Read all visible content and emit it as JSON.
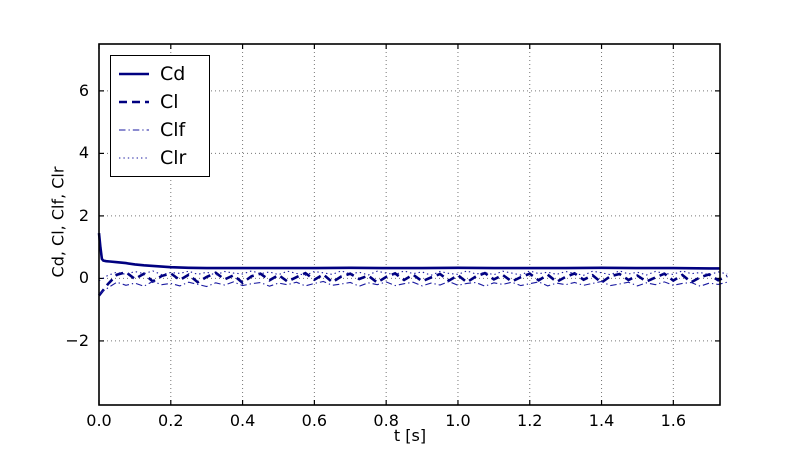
{
  "chart_data": {
    "type": "line",
    "title": "",
    "xlabel": "t [s]",
    "ylabel": "Cd, Cl, Clf, Clr",
    "xlim": [
      0,
      1.73
    ],
    "ylim": [
      -4.05,
      7.5
    ],
    "xticks": [
      0.0,
      0.2,
      0.4,
      0.6,
      0.8,
      1.0,
      1.2,
      1.4,
      1.6
    ],
    "xtick_labels": [
      "0.0",
      "0.2",
      "0.4",
      "0.6",
      "0.8",
      "1.0",
      "1.2",
      "1.4",
      "1.6"
    ],
    "yticks": [
      -2,
      0,
      2,
      4,
      6
    ],
    "ytick_labels": [
      "−2",
      "0",
      "2",
      "4",
      "6"
    ],
    "grid": true,
    "grid_color": "#777777",
    "frame_color": "#000000",
    "legend": {
      "position": "upper left",
      "entries": [
        {
          "label": "Cd",
          "style": "solid",
          "width": 2.6,
          "color": "#000080"
        },
        {
          "label": "Cl",
          "style": "dashed",
          "width": 2.6,
          "color": "#000080"
        },
        {
          "label": "Clf",
          "style": "dashdot",
          "width": 1.1,
          "color": "#1a1aa0"
        },
        {
          "label": "Clr",
          "style": "dotted",
          "width": 1.1,
          "color": "#1a1aa0"
        }
      ]
    },
    "series": [
      {
        "name": "Cd",
        "style": "solid",
        "width": 2.6,
        "color": "#000080",
        "x": [
          0,
          0.004,
          0.008,
          0.012,
          0.02,
          0.03,
          0.05,
          0.075,
          0.1,
          0.125,
          0.15,
          0.2,
          0.25,
          0.3,
          0.35,
          0.4,
          0.5,
          0.6,
          0.7,
          0.8,
          0.9,
          1.0,
          1.1,
          1.2,
          1.3,
          1.4,
          1.5,
          1.6,
          1.7,
          1.73
        ],
        "y": [
          1.45,
          1.0,
          0.62,
          0.57,
          0.55,
          0.54,
          0.52,
          0.49,
          0.45,
          0.42,
          0.4,
          0.36,
          0.34,
          0.33,
          0.33,
          0.33,
          0.33,
          0.33,
          0.34,
          0.33,
          0.33,
          0.34,
          0.33,
          0.33,
          0.33,
          0.34,
          0.33,
          0.33,
          0.32,
          0.32
        ]
      },
      {
        "name": "Cl",
        "style": "dashed",
        "width": 2.6,
        "color": "#000080",
        "x_start": 0,
        "x_step": 0.025,
        "y": [
          -0.55,
          -0.18,
          0.12,
          0.2,
          -0.02,
          0.15,
          -0.1,
          0.08,
          0.16,
          -0.05,
          0.12,
          -0.12,
          0.05,
          0.18,
          -0.03,
          0.1,
          -0.14,
          0.07,
          0.15,
          -0.06,
          0.11,
          -0.1,
          0.04,
          0.17,
          -0.04,
          0.13,
          -0.12,
          0.06,
          0.15,
          -0.02,
          0.09,
          -0.13,
          0.05,
          0.16,
          -0.05,
          0.12,
          -0.09,
          0.03,
          0.14,
          -0.07,
          0.1,
          -0.12,
          0.06,
          0.17,
          -0.03,
          0.11,
          -0.1,
          0.04,
          0.15,
          -0.06,
          0.12,
          -0.11,
          0.05,
          0.16,
          -0.04,
          0.1,
          -0.13,
          0.07,
          0.14,
          -0.05,
          0.09,
          -0.1,
          0.03,
          0.15,
          -0.07,
          0.11,
          -0.12,
          0.04,
          0.13,
          -0.06,
          0.08
        ]
      },
      {
        "name": "Clf",
        "style": "dashdot",
        "width": 1.1,
        "color": "#1a1aa0",
        "x_start": 0,
        "x_step": 0.025,
        "y": [
          -0.5,
          -0.3,
          -0.12,
          -0.22,
          -0.15,
          -0.25,
          -0.1,
          -0.2,
          -0.16,
          -0.24,
          -0.12,
          -0.19,
          -0.26,
          -0.14,
          -0.21,
          -0.11,
          -0.23,
          -0.17,
          -0.13,
          -0.25,
          -0.15,
          -0.2,
          -0.12,
          -0.24,
          -0.16,
          -0.1,
          -0.22,
          -0.18,
          -0.13,
          -0.25,
          -0.14,
          -0.2,
          -0.11,
          -0.23,
          -0.17,
          -0.12,
          -0.24,
          -0.15,
          -0.21,
          -0.1,
          -0.22,
          -0.16,
          -0.13,
          -0.25,
          -0.14,
          -0.19,
          -0.12,
          -0.23,
          -0.17,
          -0.11,
          -0.24,
          -0.15,
          -0.2,
          -0.13,
          -0.22,
          -0.16,
          -0.1,
          -0.23,
          -0.18,
          -0.12,
          -0.24,
          -0.14,
          -0.2,
          -0.11,
          -0.22,
          -0.16,
          -0.13,
          -0.25,
          -0.15,
          -0.19,
          -0.12
        ]
      },
      {
        "name": "Clr",
        "style": "dotted",
        "width": 1.1,
        "color": "#1a1aa0",
        "x_start": 0,
        "x_step": 0.025,
        "y": [
          -0.08,
          0.1,
          0.2,
          0.13,
          0.22,
          0.15,
          0.24,
          0.12,
          0.19,
          0.16,
          0.23,
          0.13,
          0.2,
          0.11,
          0.22,
          0.17,
          0.14,
          0.24,
          0.15,
          0.21,
          0.12,
          0.23,
          0.16,
          0.1,
          0.22,
          0.18,
          0.13,
          0.24,
          0.14,
          0.2,
          0.11,
          0.23,
          0.17,
          0.12,
          0.24,
          0.15,
          0.21,
          0.1,
          0.22,
          0.16,
          0.13,
          0.24,
          0.14,
          0.19,
          0.12,
          0.23,
          0.17,
          0.11,
          0.24,
          0.15,
          0.2,
          0.13,
          0.22,
          0.16,
          0.1,
          0.23,
          0.18,
          0.12,
          0.24,
          0.14,
          0.2,
          0.11,
          0.22,
          0.16,
          0.13,
          0.24,
          0.15,
          0.19,
          0.12,
          0.21,
          0.14
        ]
      }
    ]
  }
}
